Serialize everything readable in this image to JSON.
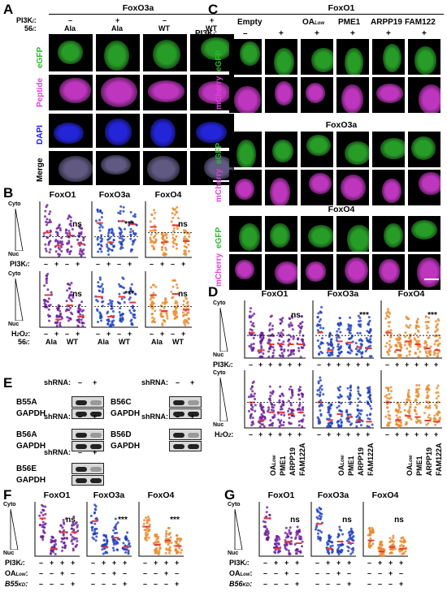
{
  "figure": {
    "panelA": {
      "letter": "A",
      "title": "FoxO3a",
      "pi3k_label": "PI3K",
      "pi3k_sub": "i",
      "pos56_label": "56",
      "pos56_sub": "i",
      "pi3k_values": [
        "–",
        "+",
        "–",
        "+"
      ],
      "pos56_values": [
        "Ala",
        "Ala",
        "WT",
        "WT"
      ],
      "row_labels": [
        "eGFP",
        "Peptide",
        "DAPI",
        "Merge"
      ],
      "row_colors": [
        "#2eb82e",
        "#e040e0",
        "#1a1aff",
        "#000000"
      ]
    },
    "panelB": {
      "letter": "B",
      "titles": [
        "FoxO1",
        "FoxO3a",
        "FoxO4"
      ],
      "cyto_label": "Cyto",
      "nuc_label": "Nuc",
      "row1_treatment": "PI3K",
      "row1_treatment_sub": "i",
      "row1_signs": [
        "–",
        "+",
        "–",
        "+"
      ],
      "row2_treatment": "H",
      "row2_treatment_mid": "2",
      "row2_treatment_end": "O",
      "row2_treatment_end_sub": "2",
      "row2_signs": [
        "–",
        "+",
        "–",
        "+"
      ],
      "pos56_label": "56",
      "pos56_sub": "i",
      "pos56_values": [
        "Ala",
        "WT",
        "Ala",
        "WT",
        "Ala",
        "WT"
      ],
      "marks_row1": [
        "ns",
        "***",
        "ns"
      ],
      "marks_row2": [
        "ns",
        "***",
        "ns"
      ]
    },
    "panelC": {
      "letter": "C",
      "title": "FoxO1",
      "pi3k_label": "PI3K",
      "pi3k_sub": "i",
      "conditions": [
        "Empty",
        "OA",
        "PME1",
        "ARPP19",
        "FAM122"
      ],
      "oa_sub": "Low",
      "pi3k_values": [
        "–",
        "+",
        "+",
        "+",
        "+",
        "+"
      ],
      "group_titles": [
        "FoxO3a",
        "FoxO4"
      ],
      "row_labels": [
        "eGFP",
        "mCherry"
      ]
    },
    "panelD": {
      "letter": "D",
      "titles": [
        "FoxO1",
        "FoxO3a",
        "FoxO4"
      ],
      "cyto_label": "Cyto",
      "nuc_label": "Nuc",
      "row1_treatment": "PI3K",
      "row1_treatment_sub": "i",
      "row2_treatment": "H",
      "row2_treatment_mid": "2",
      "row2_treatment_end": "O",
      "row2_treatment_end_sub": "2",
      "signs": [
        "–",
        "+",
        "+",
        "+",
        "+",
        "+"
      ],
      "x_labels": [
        "OA",
        "PME1",
        "ARPP19",
        "FAM122A"
      ],
      "oa_sub": "Low",
      "marks": [
        "ns",
        "***",
        "***"
      ]
    },
    "panelE": {
      "letter": "E",
      "shrna_label": "shRNA:",
      "signs": [
        "–",
        "+"
      ],
      "blots": [
        {
          "target": "B55A",
          "control": "GAPDH"
        },
        {
          "target": "B56C",
          "control": "GAPDH"
        },
        {
          "target": "B56A",
          "control": "GAPDH"
        },
        {
          "target": "B56D",
          "control": "GAPDH"
        },
        {
          "target": "B56E",
          "control": "GAPDH"
        }
      ]
    },
    "panelF": {
      "letter": "F",
      "titles": [
        "FoxO1",
        "FoxO3a",
        "FoxO4"
      ],
      "cyto_label": "Cyto",
      "nuc_label": "Nuc",
      "rows": [
        "PI3K",
        "OA",
        "B55"
      ],
      "row_subs": [
        "i",
        "Low",
        "KD"
      ],
      "row1_signs": [
        "–",
        "+",
        "+",
        "+"
      ],
      "row2_signs": [
        "–",
        "–",
        "+",
        "–"
      ],
      "row3_signs": [
        "–",
        "–",
        "–",
        "+"
      ],
      "marks": [
        "ns",
        "***",
        "***"
      ]
    },
    "panelG": {
      "letter": "G",
      "titles": [
        "FoxO1",
        "FoxO3a",
        "FoxO4"
      ],
      "cyto_label": "Cyto",
      "nuc_label": "Nuc",
      "rows": [
        "PI3K",
        "OA",
        "B56"
      ],
      "row_subs": [
        "i",
        "Low",
        "KD"
      ],
      "row1_signs": [
        "–",
        "+",
        "+",
        "+"
      ],
      "row2_signs": [
        "–",
        "–",
        "+",
        "–"
      ],
      "row3_signs": [
        "–",
        "–",
        "–",
        "+"
      ],
      "marks": [
        "ns",
        "ns",
        "ns"
      ]
    },
    "colors": {
      "foxo1": "#6a1b9a",
      "foxo3a": "#1e3fbf",
      "foxo4": "#e8892b",
      "median": "#e53935",
      "egfp": "#2eb82e",
      "mcherry": "#e040e0"
    }
  }
}
